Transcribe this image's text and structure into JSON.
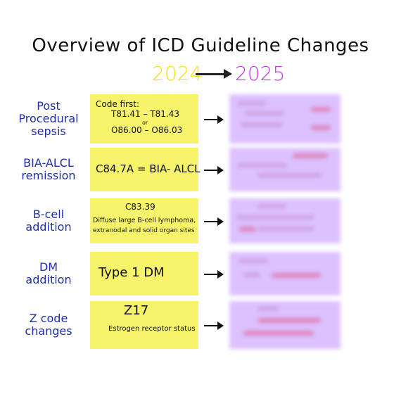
{
  "title": "Overview of ICD Guideline Changes",
  "year_from": "2024",
  "year_to": "2025",
  "rows": [
    {
      "label": "Post Procedural\nsepsis",
      "lines": [
        "Code first:",
        "T81.41 – T81.43",
        "or",
        "O86.00 – O86.03"
      ]
    },
    {
      "label": "BIA-ALCL\nremission",
      "lines": [
        "C84.7A = BIA- ALCL"
      ]
    },
    {
      "label": "B-cell\naddition",
      "lines": [
        "C83.39",
        "Diffuse large B-cell lymphoma,",
        "extranodal and solid organ sites"
      ]
    },
    {
      "label": "DM\naddition",
      "lines": [
        "Type 1 DM"
      ]
    },
    {
      "label": "Z code\nchanges",
      "lines": [
        "Z17",
        "Estrogen receptor status"
      ]
    }
  ]
}
